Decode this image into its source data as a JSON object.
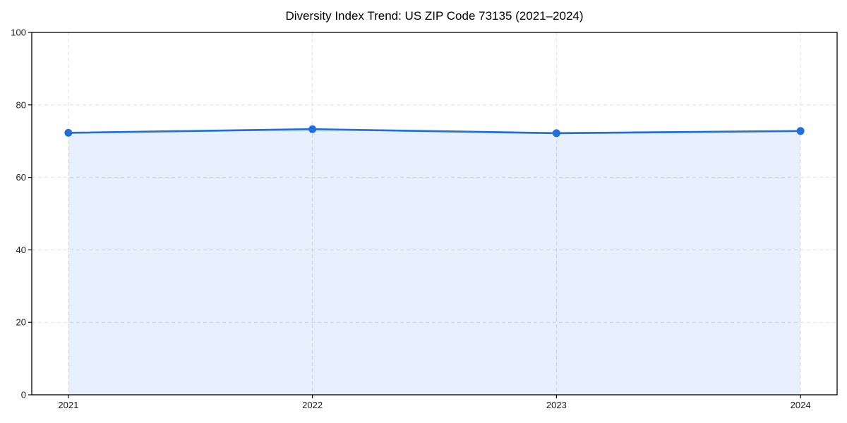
{
  "chart_data": {
    "type": "area",
    "title": "Diversity Index Trend: US ZIP Code 73135 (2021–2024)",
    "x": [
      2021,
      2022,
      2023,
      2024
    ],
    "values": [
      72.3,
      73.3,
      72.2,
      72.8
    ],
    "xlabel": "",
    "ylabel": "",
    "ylim": [
      0,
      100
    ],
    "yticks": [
      0,
      20,
      40,
      60,
      80,
      100
    ],
    "xticks": [
      "2021",
      "2022",
      "2023",
      "2024"
    ],
    "grid": true,
    "legend": "none",
    "colors": {
      "line": "#1f6fdc",
      "marker": "#1f6fdc",
      "fill": "rgba(31,111,220,0.11)",
      "grid": "#e0e0e0",
      "axis": "#000000",
      "tick_text": "#1a1a1a",
      "background": "#ffffff"
    }
  }
}
